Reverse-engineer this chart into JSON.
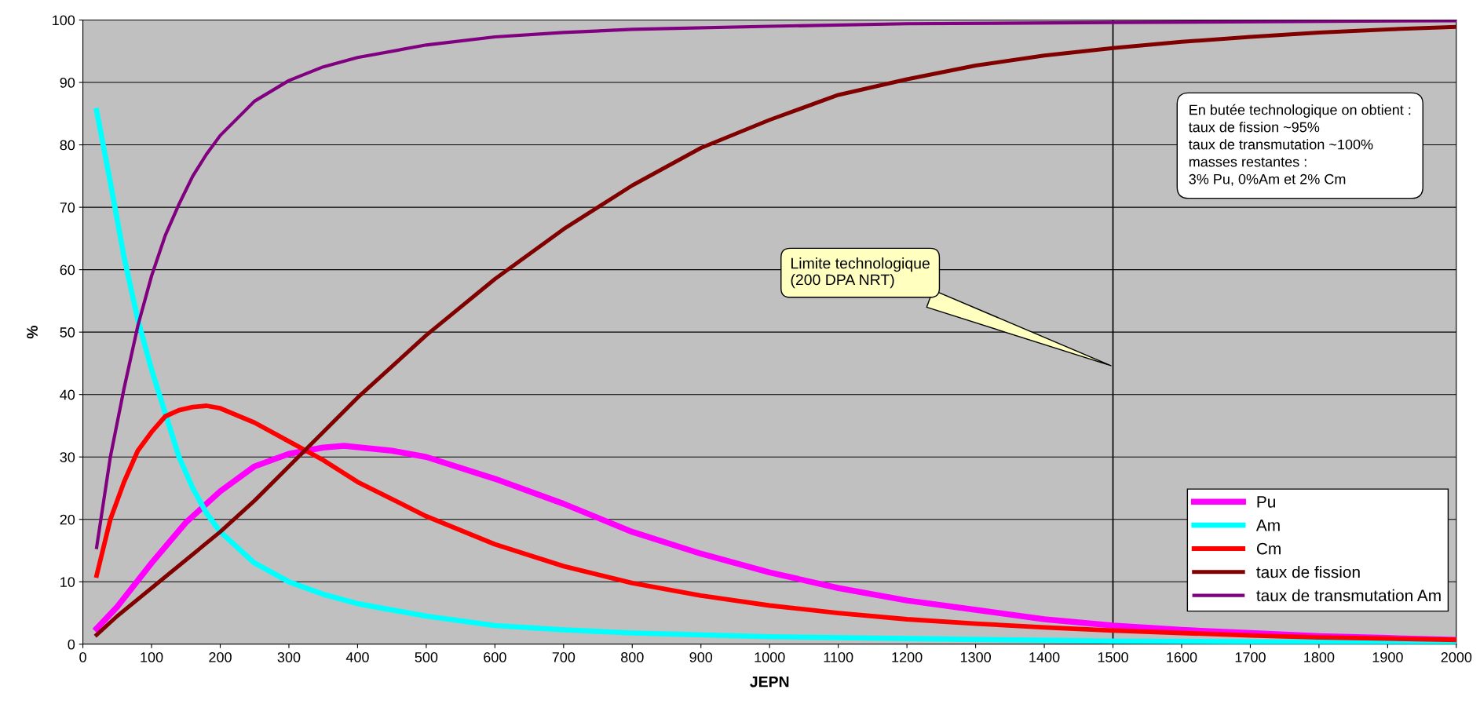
{
  "chart_data": {
    "type": "line",
    "xlabel": "JEPN",
    "ylabel": "%",
    "xlim": [
      0,
      2000
    ],
    "xticks": [
      0,
      100,
      200,
      300,
      400,
      500,
      600,
      700,
      800,
      900,
      1000,
      1100,
      1200,
      1300,
      1400,
      1500,
      1600,
      1700,
      1800,
      1900,
      2000
    ],
    "ylim": [
      0,
      100
    ],
    "yticks": [
      0,
      10,
      20,
      30,
      40,
      50,
      60,
      70,
      80,
      90,
      100
    ],
    "grid": "y",
    "legend": "bottom right",
    "marker": "none",
    "line_style": "solid",
    "series": [
      {
        "name": "Pu",
        "color": "#ff00ff",
        "x": [
          20,
          50,
          100,
          150,
          200,
          250,
          300,
          350,
          380,
          450,
          500,
          600,
          700,
          800,
          900,
          1000,
          1100,
          1200,
          1300,
          1400,
          1500,
          1600,
          1700,
          1800,
          1900,
          2000
        ],
        "values": [
          2.5,
          6,
          13,
          19.5,
          24.5,
          28.5,
          30.5,
          31.5,
          31.8,
          31,
          30,
          26.5,
          22.5,
          18,
          14.5,
          11.5,
          9,
          7,
          5.5,
          4,
          3,
          2.3,
          1.8,
          1.3,
          1,
          0.7
        ]
      },
      {
        "name": "Am",
        "color": "#00ffff",
        "x": [
          20,
          40,
          60,
          80,
          100,
          120,
          140,
          160,
          180,
          200,
          250,
          300,
          350,
          400,
          500,
          600,
          700,
          800,
          1000,
          1200,
          1500,
          2000
        ],
        "values": [
          85.5,
          74,
          62,
          52,
          44,
          37,
          30,
          25,
          21,
          18,
          13,
          10,
          8,
          6.5,
          4.5,
          3,
          2.3,
          1.8,
          1.2,
          0.9,
          0.5,
          0.2
        ]
      },
      {
        "name": "Cm",
        "color": "#ff0000",
        "x": [
          20,
          40,
          60,
          80,
          100,
          120,
          140,
          160,
          180,
          200,
          250,
          300,
          350,
          400,
          500,
          600,
          700,
          800,
          900,
          1000,
          1100,
          1200,
          1300,
          1400,
          1500,
          1600,
          1700,
          1800,
          1900,
          2000
        ],
        "values": [
          11,
          20,
          26,
          31,
          34,
          36.5,
          37.5,
          38,
          38.2,
          37.8,
          35.5,
          32.5,
          29.5,
          26,
          20.5,
          16,
          12.5,
          9.8,
          7.8,
          6.2,
          5,
          4,
          3.3,
          2.7,
          2.2,
          1.8,
          1.4,
          1.1,
          0.9,
          0.7
        ]
      },
      {
        "name": "taux de fission",
        "color": "#800000",
        "x": [
          20,
          50,
          100,
          150,
          200,
          250,
          300,
          350,
          400,
          500,
          600,
          700,
          800,
          900,
          1000,
          1100,
          1200,
          1300,
          1400,
          1500,
          1600,
          1700,
          1800,
          1900,
          2000
        ],
        "values": [
          1.5,
          4.5,
          9,
          13.5,
          18,
          23,
          28.5,
          34,
          39.5,
          49.5,
          58.5,
          66.5,
          73.5,
          79.5,
          84,
          88,
          90.5,
          92.7,
          94.3,
          95.5,
          96.5,
          97.3,
          98,
          98.5,
          98.9
        ]
      },
      {
        "name": "taux de transmutation Am",
        "color": "#800080",
        "x": [
          20,
          40,
          60,
          80,
          100,
          120,
          140,
          160,
          180,
          200,
          250,
          300,
          350,
          400,
          500,
          600,
          700,
          800,
          1000,
          1200,
          1500,
          2000
        ],
        "values": [
          15.5,
          30,
          41,
          51,
          59,
          65.5,
          70.5,
          75,
          78.5,
          81.5,
          87,
          90.3,
          92.5,
          94,
          96,
          97.3,
          98,
          98.5,
          99,
          99.4,
          99.6,
          99.9
        ]
      }
    ],
    "ref_lines": [
      {
        "axis": "x",
        "value": 1500,
        "color": "#000000",
        "line_style": "solid"
      }
    ],
    "annotations": [
      {
        "text": "Limite technologique\n(200 DPA NRT)",
        "x": 1500,
        "y": 44.5
      },
      "En butée technologique on obtient :\ntaux de fission ~95%\ntaux de transmutation ~100%\nmasses restantes :\n3% Pu, 0%Am et 2% Cm"
    ]
  }
}
